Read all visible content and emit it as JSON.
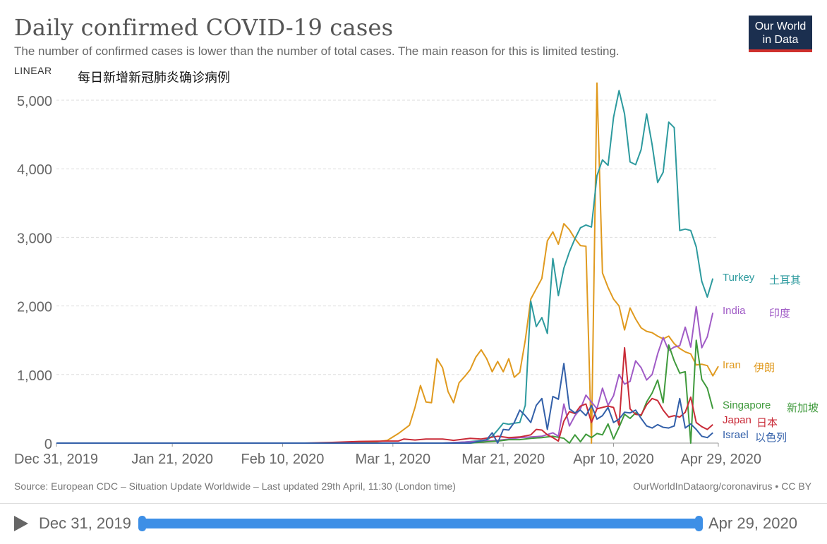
{
  "header": {
    "title": "Daily confirmed COVID-19 cases",
    "subtitle": "The number of confirmed cases is lower than the number of total cases. The main reason for this is limited testing.",
    "scale": "LINEAR",
    "annotation": "每日新增新冠肺炎确诊病例"
  },
  "logo": {
    "line1": "Our World",
    "line2": "in Data"
  },
  "footer": {
    "source": "Source: European CDC – Situation Update Worldwide – Last updated 29th April, 11:30 (London time)",
    "link": "OurWorldInDataorg/coronavirus • CC BY"
  },
  "timeline": {
    "start": "Dec 31, 2019",
    "end": "Apr 29, 2020"
  },
  "chart_data": {
    "type": "line",
    "title": "Daily confirmed COVID-19 cases",
    "xlabel": "",
    "ylabel": "",
    "ylim": [
      0,
      5000
    ],
    "grid": true,
    "x_start": "2019-12-31",
    "x_end": "2020-04-29",
    "x_ticks": [
      {
        "day": 0,
        "label": "Dec 31, 2019"
      },
      {
        "day": 21,
        "label": "Jan 21, 2020"
      },
      {
        "day": 41,
        "label": "Feb 10, 2020"
      },
      {
        "day": 61,
        "label": "Mar 1, 2020"
      },
      {
        "day": 81,
        "label": "Mar 21, 2020"
      },
      {
        "day": 101,
        "label": "Apr 10, 2020"
      },
      {
        "day": 120,
        "label": "Apr 29, 2020"
      }
    ],
    "y_ticks": [
      {
        "value": 0,
        "label": "0"
      },
      {
        "value": 1000,
        "label": "1,000"
      },
      {
        "value": 2000,
        "label": "2,000"
      },
      {
        "value": 3000,
        "label": "3,000"
      },
      {
        "value": 4000,
        "label": "4,000"
      },
      {
        "value": 5000,
        "label": "5,000"
      }
    ],
    "series": [
      {
        "name": "Iran",
        "label_cn": "伊朗",
        "color": "#e09a1f",
        "points": [
          [
            0,
            0
          ],
          [
            48,
            0
          ],
          [
            50,
            5
          ],
          [
            55,
            15
          ],
          [
            58,
            20
          ],
          [
            60,
            40
          ],
          [
            62,
            140
          ],
          [
            64,
            260
          ],
          [
            65,
            520
          ],
          [
            66,
            840
          ],
          [
            67,
            600
          ],
          [
            68,
            590
          ],
          [
            69,
            1230
          ],
          [
            70,
            1100
          ],
          [
            71,
            750
          ],
          [
            72,
            590
          ],
          [
            73,
            880
          ],
          [
            74,
            970
          ],
          [
            75,
            1070
          ],
          [
            76,
            1250
          ],
          [
            77,
            1360
          ],
          [
            78,
            1230
          ],
          [
            79,
            1040
          ],
          [
            80,
            1190
          ],
          [
            81,
            1040
          ],
          [
            82,
            1230
          ],
          [
            83,
            960
          ],
          [
            84,
            1030
          ],
          [
            85,
            1500
          ],
          [
            86,
            2100
          ],
          [
            87,
            2250
          ],
          [
            88,
            2400
          ],
          [
            89,
            2950
          ],
          [
            90,
            3080
          ],
          [
            91,
            2900
          ],
          [
            92,
            3200
          ],
          [
            93,
            3110
          ],
          [
            94,
            2980
          ],
          [
            95,
            2880
          ],
          [
            96,
            2870
          ],
          [
            97,
            0
          ],
          [
            98,
            5250
          ],
          [
            99,
            2480
          ],
          [
            100,
            2270
          ],
          [
            101,
            2100
          ],
          [
            102,
            2000
          ],
          [
            103,
            1650
          ],
          [
            104,
            1970
          ],
          [
            105,
            1810
          ],
          [
            106,
            1680
          ],
          [
            107,
            1630
          ],
          [
            108,
            1610
          ],
          [
            109,
            1560
          ],
          [
            110,
            1520
          ],
          [
            111,
            1560
          ],
          [
            112,
            1450
          ],
          [
            113,
            1380
          ],
          [
            114,
            1330
          ],
          [
            115,
            1300
          ],
          [
            116,
            1140
          ],
          [
            117,
            1150
          ],
          [
            118,
            1130
          ],
          [
            119,
            980
          ],
          [
            120,
            1120
          ]
        ]
      },
      {
        "name": "Turkey",
        "label_cn": "土耳其",
        "color": "#2d9a9e",
        "points": [
          [
            0,
            0
          ],
          [
            70,
            0
          ],
          [
            72,
            5
          ],
          [
            74,
            15
          ],
          [
            76,
            30
          ],
          [
            78,
            40
          ],
          [
            79,
            100
          ],
          [
            80,
            190
          ],
          [
            81,
            290
          ],
          [
            82,
            275
          ],
          [
            83,
            290
          ],
          [
            84,
            300
          ],
          [
            85,
            550
          ],
          [
            86,
            2070
          ],
          [
            87,
            1700
          ],
          [
            88,
            1830
          ],
          [
            89,
            1600
          ],
          [
            90,
            2690
          ],
          [
            91,
            2150
          ],
          [
            92,
            2550
          ],
          [
            93,
            2790
          ],
          [
            94,
            2980
          ],
          [
            95,
            3140
          ],
          [
            96,
            3180
          ],
          [
            97,
            3150
          ],
          [
            98,
            3900
          ],
          [
            99,
            4130
          ],
          [
            100,
            4050
          ],
          [
            101,
            4750
          ],
          [
            102,
            5140
          ],
          [
            103,
            4800
          ],
          [
            104,
            4100
          ],
          [
            105,
            4060
          ],
          [
            106,
            4280
          ],
          [
            107,
            4800
          ],
          [
            108,
            4350
          ],
          [
            109,
            3800
          ],
          [
            110,
            3950
          ],
          [
            111,
            4680
          ],
          [
            112,
            4600
          ],
          [
            113,
            3100
          ],
          [
            114,
            3120
          ],
          [
            115,
            3100
          ],
          [
            116,
            2860
          ],
          [
            117,
            2360
          ],
          [
            118,
            2130
          ],
          [
            119,
            2400
          ]
        ]
      },
      {
        "name": "India",
        "label_cn": "印度",
        "color": "#a05bc6",
        "points": [
          [
            0,
            0
          ],
          [
            70,
            0
          ],
          [
            75,
            20
          ],
          [
            78,
            30
          ],
          [
            80,
            40
          ],
          [
            82,
            60
          ],
          [
            84,
            80
          ],
          [
            86,
            90
          ],
          [
            88,
            100
          ],
          [
            90,
            150
          ],
          [
            91,
            100
          ],
          [
            92,
            570
          ],
          [
            93,
            250
          ],
          [
            94,
            400
          ],
          [
            95,
            500
          ],
          [
            96,
            700
          ],
          [
            97,
            600
          ],
          [
            98,
            500
          ],
          [
            99,
            800
          ],
          [
            100,
            550
          ],
          [
            101,
            690
          ],
          [
            102,
            1000
          ],
          [
            103,
            860
          ],
          [
            104,
            900
          ],
          [
            105,
            1200
          ],
          [
            106,
            1100
          ],
          [
            107,
            920
          ],
          [
            108,
            1000
          ],
          [
            109,
            1300
          ],
          [
            110,
            1540
          ],
          [
            111,
            1350
          ],
          [
            112,
            1400
          ],
          [
            113,
            1420
          ],
          [
            114,
            1690
          ],
          [
            115,
            1400
          ],
          [
            116,
            1990
          ],
          [
            117,
            1390
          ],
          [
            118,
            1550
          ],
          [
            119,
            1900
          ]
        ]
      },
      {
        "name": "Singapore",
        "label_cn": "新加坡",
        "color": "#3f9a3c",
        "points": [
          [
            0,
            0
          ],
          [
            75,
            0
          ],
          [
            78,
            20
          ],
          [
            80,
            30
          ],
          [
            82,
            50
          ],
          [
            84,
            50
          ],
          [
            86,
            70
          ],
          [
            88,
            80
          ],
          [
            90,
            100
          ],
          [
            92,
            70
          ],
          [
            93,
            0
          ],
          [
            94,
            120
          ],
          [
            95,
            20
          ],
          [
            96,
            130
          ],
          [
            97,
            80
          ],
          [
            98,
            140
          ],
          [
            99,
            120
          ],
          [
            100,
            280
          ],
          [
            101,
            60
          ],
          [
            102,
            230
          ],
          [
            103,
            420
          ],
          [
            104,
            360
          ],
          [
            105,
            440
          ],
          [
            106,
            400
          ],
          [
            107,
            600
          ],
          [
            108,
            730
          ],
          [
            109,
            920
          ],
          [
            110,
            590
          ],
          [
            111,
            1430
          ],
          [
            112,
            1200
          ],
          [
            113,
            1020
          ],
          [
            114,
            1040
          ],
          [
            115,
            0
          ],
          [
            116,
            1500
          ],
          [
            117,
            930
          ],
          [
            118,
            800
          ],
          [
            119,
            500
          ]
        ]
      },
      {
        "name": "Japan",
        "label_cn": "日本",
        "color": "#c92b38",
        "points": [
          [
            0,
            0
          ],
          [
            45,
            0
          ],
          [
            50,
            10
          ],
          [
            55,
            25
          ],
          [
            60,
            30
          ],
          [
            62,
            30
          ],
          [
            63,
            60
          ],
          [
            65,
            45
          ],
          [
            67,
            60
          ],
          [
            70,
            60
          ],
          [
            72,
            40
          ],
          [
            75,
            70
          ],
          [
            77,
            60
          ],
          [
            80,
            100
          ],
          [
            82,
            80
          ],
          [
            84,
            90
          ],
          [
            86,
            120
          ],
          [
            87,
            200
          ],
          [
            88,
            190
          ],
          [
            89,
            120
          ],
          [
            90,
            80
          ],
          [
            91,
            30
          ],
          [
            92,
            320
          ],
          [
            93,
            460
          ],
          [
            94,
            430
          ],
          [
            95,
            540
          ],
          [
            96,
            570
          ],
          [
            97,
            300
          ],
          [
            98,
            500
          ],
          [
            100,
            540
          ],
          [
            101,
            520
          ],
          [
            102,
            260
          ],
          [
            103,
            1390
          ],
          [
            104,
            500
          ],
          [
            105,
            420
          ],
          [
            106,
            410
          ],
          [
            107,
            560
          ],
          [
            108,
            650
          ],
          [
            109,
            620
          ],
          [
            110,
            480
          ],
          [
            111,
            380
          ],
          [
            112,
            400
          ],
          [
            113,
            380
          ],
          [
            114,
            450
          ],
          [
            115,
            670
          ],
          [
            116,
            300
          ],
          [
            117,
            240
          ],
          [
            118,
            200
          ],
          [
            119,
            270
          ]
        ]
      },
      {
        "name": "Israel",
        "label_cn": "以色列",
        "color": "#3360a9",
        "points": [
          [
            0,
            0
          ],
          [
            75,
            0
          ],
          [
            78,
            50
          ],
          [
            79,
            150
          ],
          [
            80,
            0
          ],
          [
            81,
            200
          ],
          [
            82,
            190
          ],
          [
            83,
            300
          ],
          [
            84,
            480
          ],
          [
            85,
            400
          ],
          [
            86,
            300
          ],
          [
            87,
            550
          ],
          [
            88,
            650
          ],
          [
            89,
            200
          ],
          [
            90,
            680
          ],
          [
            91,
            640
          ],
          [
            92,
            1160
          ],
          [
            93,
            500
          ],
          [
            94,
            440
          ],
          [
            95,
            480
          ],
          [
            96,
            400
          ],
          [
            97,
            550
          ],
          [
            98,
            350
          ],
          [
            99,
            400
          ],
          [
            100,
            520
          ],
          [
            101,
            300
          ],
          [
            102,
            350
          ],
          [
            103,
            450
          ],
          [
            104,
            440
          ],
          [
            105,
            480
          ],
          [
            106,
            360
          ],
          [
            107,
            250
          ],
          [
            108,
            220
          ],
          [
            109,
            270
          ],
          [
            110,
            230
          ],
          [
            111,
            220
          ],
          [
            112,
            250
          ],
          [
            113,
            650
          ],
          [
            114,
            220
          ],
          [
            115,
            280
          ],
          [
            116,
            200
          ],
          [
            117,
            100
          ],
          [
            118,
            80
          ],
          [
            119,
            150
          ]
        ]
      }
    ]
  }
}
